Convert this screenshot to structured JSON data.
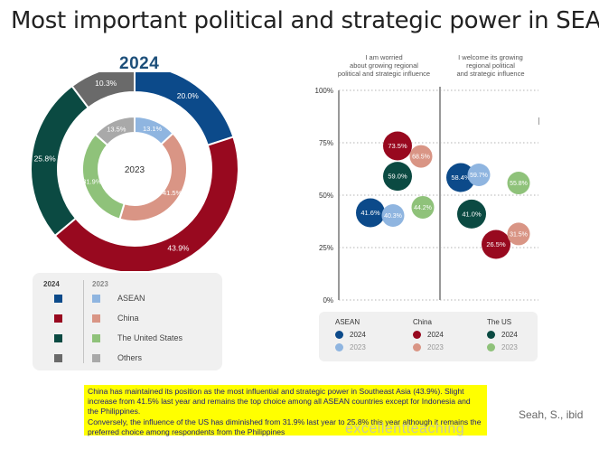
{
  "slide_title": "Most important political and strategic power in SEA",
  "chart_data": [
    {
      "type": "pie",
      "title": "2024",
      "center_label": "2023",
      "rings": [
        {
          "name": "2024",
          "slices": [
            {
              "label": "ASEAN",
              "value": 20.0,
              "text": "20.0%"
            },
            {
              "label": "China",
              "value": 43.9,
              "text": "43.9%"
            },
            {
              "label": "The United States",
              "value": 25.8,
              "text": "25.8%"
            },
            {
              "label": "Others",
              "value": 10.3,
              "text": "10.3%"
            }
          ]
        },
        {
          "name": "2023",
          "slices": [
            {
              "label": "ASEAN",
              "value": 13.1,
              "text": "13.1%"
            },
            {
              "label": "China",
              "value": 41.5,
              "text": "41.5%"
            },
            {
              "label": "The United States",
              "value": 31.9,
              "text": "31.9%"
            },
            {
              "label": "Others",
              "value": 13.5,
              "text": "13.5%"
            }
          ]
        }
      ],
      "legend": {
        "header_2024": "2024",
        "header_2023": "2023",
        "items": [
          {
            "label": "ASEAN",
            "color_2024": "#0c4a8a",
            "color_2023": "#8fb5e0"
          },
          {
            "label": "China",
            "color_2024": "#98091f",
            "color_2023": "#d99585"
          },
          {
            "label": "The United States",
            "color_2024": "#0b4a42",
            "color_2023": "#8fc27a"
          },
          {
            "label": "Others",
            "color_2024": "#6a6a6a",
            "color_2023": "#a9a9a9"
          }
        ]
      },
      "colors_2024": [
        "#0c4a8a",
        "#98091f",
        "#0b4a42",
        "#6a6a6a"
      ],
      "colors_2023": [
        "#8fb5e0",
        "#d99585",
        "#8fc27a",
        "#a9a9a9"
      ]
    },
    {
      "type": "scatter",
      "column_headers": [
        "I am worried about growing regional political and strategic influence",
        "I welcome its growing regional political and strategic influence"
      ],
      "ylim": [
        0,
        100
      ],
      "yticks": [
        "0%",
        "25%",
        "50%",
        "75%",
        "100%"
      ],
      "points": [
        {
          "series": "ASEAN",
          "year": "2024",
          "column": 0,
          "value": 41.6,
          "text": "41.6%"
        },
        {
          "series": "ASEAN",
          "year": "2023",
          "column": 0,
          "value": 40.3,
          "text": "40.3%"
        },
        {
          "series": "China",
          "year": "2024",
          "column": 0,
          "value": 73.5,
          "text": "73.5%"
        },
        {
          "series": "China",
          "year": "2023",
          "column": 0,
          "value": 68.5,
          "text": "68.5%"
        },
        {
          "series": "The US",
          "year": "2024",
          "column": 0,
          "value": 59.0,
          "text": "59.0%"
        },
        {
          "series": "The US",
          "year": "2023",
          "column": 0,
          "value": 44.2,
          "text": "44.2%"
        },
        {
          "series": "ASEAN",
          "year": "2024",
          "column": 1,
          "value": 58.4,
          "text": "58.4%"
        },
        {
          "series": "ASEAN",
          "year": "2023",
          "column": 1,
          "value": 59.7,
          "text": "59.7%"
        },
        {
          "series": "China",
          "year": "2024",
          "column": 1,
          "value": 26.5,
          "text": "26.5%"
        },
        {
          "series": "China",
          "year": "2023",
          "column": 1,
          "value": 31.5,
          "text": "31.5%"
        },
        {
          "series": "The US",
          "year": "2024",
          "column": 1,
          "value": 41.0,
          "text": "41.0%"
        },
        {
          "series": "The US",
          "year": "2023",
          "column": 1,
          "value": 55.8,
          "text": "55.8%"
        }
      ],
      "legend": [
        {
          "name": "ASEAN",
          "color_2024": "#0c4a8a",
          "color_2023": "#8fb5e0"
        },
        {
          "name": "China",
          "color_2024": "#98091f",
          "color_2023": "#d99585"
        },
        {
          "name": "The US",
          "color_2024": "#0b4a42",
          "color_2023": "#8fc27a"
        }
      ],
      "legend_years": [
        "2024",
        "2023"
      ]
    }
  ],
  "note": {
    "line1": "China has maintained its position as the most influential and strategic power in Southeast Asia (43.9%). Slight increase from 41.5% last year and remains the top choice among all ASEAN countries except for Indonesia and the Philippines.",
    "line2": "Conversely, the influence of the US has diminished from 31.9% last year to 25.8% this year although it remains the preferred choice among respondents from the Philippines"
  },
  "source": "Seah, S., ibid",
  "watermark": "excellentteaching"
}
